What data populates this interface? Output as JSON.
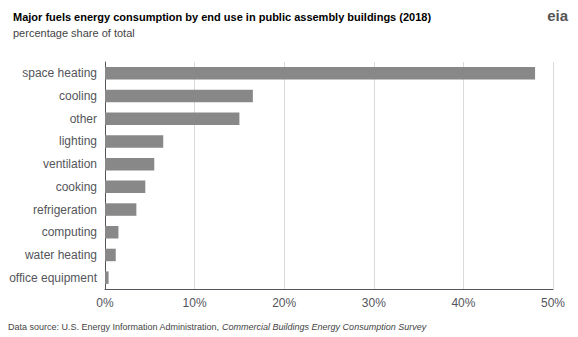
{
  "chart_data": {
    "type": "bar",
    "orientation": "horizontal",
    "title": "Major fuels energy consumption by end use in public assembly buildings (2018)",
    "subtitle": "percentage share of total",
    "categories": [
      "space heating",
      "cooling",
      "other",
      "lighting",
      "ventilation",
      "cooking",
      "refrigeration",
      "computing",
      "water heating",
      "office equipment"
    ],
    "values": [
      48,
      16.5,
      15,
      6.5,
      5.5,
      4.5,
      3.5,
      1.5,
      1.2,
      0.4
    ],
    "color": "#888888",
    "xlim": [
      0,
      50
    ],
    "xticks": [
      {
        "value": 0,
        "label": "0%"
      },
      {
        "value": 10,
        "label": "10%"
      },
      {
        "value": 20,
        "label": "20%"
      },
      {
        "value": 30,
        "label": "30%"
      },
      {
        "value": 40,
        "label": "40%"
      },
      {
        "value": 50,
        "label": "50%"
      }
    ],
    "grid": true,
    "annotations": [
      "Data source: U.S. Energy Information Administration,",
      "Commercial Buildings Energy Consumption Survey",
      "eia"
    ]
  }
}
